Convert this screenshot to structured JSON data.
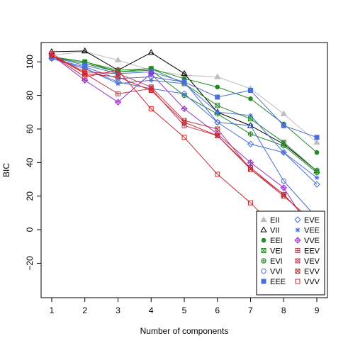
{
  "chart_data": {
    "type": "line",
    "title": "",
    "xlabel": "Number of components",
    "ylabel": "BIC",
    "x": [
      1,
      2,
      3,
      4,
      5,
      6,
      7,
      8,
      9
    ],
    "xticks": [
      "1",
      "2",
      "3",
      "4",
      "5",
      "6",
      "7",
      "8",
      "9"
    ],
    "yticks": [
      "−20",
      "0",
      "20",
      "40",
      "60",
      "80",
      "100"
    ],
    "ytick_values": [
      -20,
      0,
      20,
      40,
      60,
      80,
      100
    ],
    "xlim": [
      0.68,
      9.32
    ],
    "ylim": [
      -40.5,
      111.5
    ],
    "grid": false,
    "legend_position": "bottom-right",
    "series": [
      {
        "name": "EII",
        "marker": "triangle-filled",
        "color": "#BEBEBE",
        "values": [
          104,
          106,
          101,
          95,
          92,
          91,
          84,
          69,
          52
        ]
      },
      {
        "name": "VII",
        "marker": "triangle-open",
        "color": "#000000",
        "values": [
          106,
          106.5,
          95,
          105.5,
          93,
          70,
          62,
          51,
          35
        ]
      },
      {
        "name": "EEI",
        "marker": "circle-filled",
        "color": "#228B22",
        "values": [
          103,
          100,
          95,
          96,
          90,
          85,
          78,
          63,
          46
        ]
      },
      {
        "name": "VEI",
        "marker": "square-x",
        "color": "#228B22",
        "values": [
          103,
          100,
          94,
          96,
          87,
          74,
          66,
          52,
          35
        ]
      },
      {
        "name": "EVI",
        "marker": "circle-plus",
        "color": "#228B22",
        "values": [
          103,
          99,
          94,
          95,
          80,
          69,
          57,
          50,
          34
        ]
      },
      {
        "name": "VVI",
        "marker": "circle-open",
        "color": "#4A6FD9",
        "values": [
          102,
          97,
          90,
          91,
          88,
          64,
          62,
          29,
          7
        ]
      },
      {
        "name": "EEE",
        "marker": "square-filled",
        "color": "#4A6FD9",
        "values": [
          103,
          98,
          93,
          94,
          88,
          79,
          83,
          62,
          55
        ]
      },
      {
        "name": "EVE",
        "marker": "diamond-open",
        "color": "#4A6FD9",
        "values": [
          102,
          96,
          88,
          84,
          81,
          64,
          51,
          46,
          27
        ]
      },
      {
        "name": "VEE",
        "marker": "asterisk",
        "color": "#4A6FD9",
        "values": [
          102,
          96,
          87,
          89,
          87,
          70,
          68,
          46,
          31
        ]
      },
      {
        "name": "VVE",
        "marker": "diamond-plus",
        "color": "#9932CC",
        "values": [
          104,
          89,
          76,
          93,
          72,
          57,
          40,
          25,
          -6
        ]
      },
      {
        "name": "EEV",
        "marker": "square-plus",
        "color": "#C23B53",
        "values": [
          105,
          93,
          81,
          84,
          62,
          56,
          37,
          21,
          0
        ]
      },
      {
        "name": "VEV",
        "marker": "square-x",
        "color": "#C23B53",
        "values": [
          104,
          94,
          93,
          85,
          65,
          60,
          36,
          21,
          0
        ]
      },
      {
        "name": "EVV",
        "marker": "square-x",
        "color": "#CD2626",
        "values": [
          104,
          93,
          91,
          83,
          64,
          56,
          36,
          20,
          3
        ]
      },
      {
        "name": "VVV",
        "marker": "square-open",
        "color": "#CD2626",
        "values": [
          104,
          91,
          95,
          72,
          55,
          33,
          16,
          -4,
          -34
        ]
      }
    ]
  }
}
